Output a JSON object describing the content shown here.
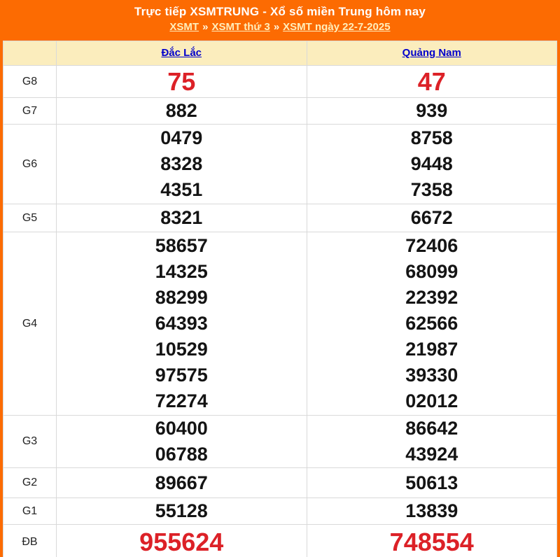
{
  "header": {
    "title": "Trực tiếp XSMTRUNG - Xổ số miền Trung hôm nay",
    "separator": "»",
    "breadcrumb": [
      {
        "label": "XSMT"
      },
      {
        "label": "XSMT thứ 3"
      },
      {
        "label": "XSMT ngày 22-7-2025"
      }
    ]
  },
  "table": {
    "columns": [
      "Đắc Lắc",
      "Quảng Nam"
    ],
    "rows": [
      {
        "label": "G8",
        "style": "red-large",
        "values": [
          [
            "75"
          ],
          [
            "47"
          ]
        ]
      },
      {
        "label": "G7",
        "values": [
          [
            "882"
          ],
          [
            "939"
          ]
        ]
      },
      {
        "label": "G6",
        "values": [
          [
            "0479",
            "8328",
            "4351"
          ],
          [
            "8758",
            "9448",
            "7358"
          ]
        ]
      },
      {
        "label": "G5",
        "values": [
          [
            "8321"
          ],
          [
            "6672"
          ]
        ]
      },
      {
        "label": "G4",
        "values": [
          [
            "58657",
            "14325",
            "88299",
            "64393",
            "10529",
            "97575",
            "72274"
          ],
          [
            "72406",
            "68099",
            "22392",
            "62566",
            "21987",
            "39330",
            "02012"
          ]
        ]
      },
      {
        "label": "G3",
        "values": [
          [
            "60400",
            "06788"
          ],
          [
            "86642",
            "43924"
          ]
        ]
      },
      {
        "label": "G2",
        "values": [
          [
            "89667"
          ],
          [
            "50613"
          ]
        ]
      },
      {
        "label": "G1",
        "values": [
          [
            "55128"
          ],
          [
            "13839"
          ]
        ]
      },
      {
        "label": "ĐB",
        "style": "red-large",
        "values": [
          [
            "955624"
          ],
          [
            "748554"
          ]
        ]
      }
    ]
  },
  "colors": {
    "accent_orange": "#fc6b02",
    "column_header_bg": "#fbedbd",
    "link_blue": "#0000cc",
    "number_red": "#dc2127",
    "breadcrumb_link": "#ffeebb",
    "grid_line": "#d9d9d9"
  }
}
